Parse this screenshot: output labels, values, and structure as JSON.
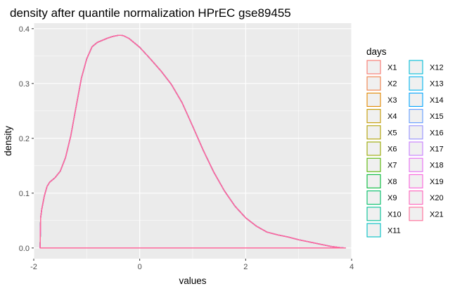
{
  "chart_data": {
    "type": "line",
    "title": "density after quantile normalization HPrEC gse89455",
    "xlabel": "values",
    "ylabel": "density",
    "xlim": [
      -2.0,
      4.0
    ],
    "ylim": [
      -0.0195,
      0.41
    ],
    "x_ticks": [
      -2,
      0,
      2,
      4
    ],
    "x_tick_labels": [
      "-2",
      "0",
      "2",
      "4"
    ],
    "y_ticks": [
      0.0,
      0.1,
      0.2,
      0.3,
      0.4
    ],
    "y_tick_labels": [
      "0.0",
      "0.1",
      "0.2",
      "0.3",
      "0.4"
    ],
    "grid": true,
    "legend": {
      "title": "days",
      "position": "right",
      "fill": "#f0f0f0"
    },
    "curve_x": [
      -1.88,
      -1.87,
      -1.85,
      -1.8,
      -1.75,
      -1.7,
      -1.6,
      -1.5,
      -1.4,
      -1.3,
      -1.2,
      -1.1,
      -1.0,
      -0.9,
      -0.8,
      -0.7,
      -0.6,
      -0.5,
      -0.4,
      -0.35,
      -0.3,
      -0.2,
      0.0,
      0.2,
      0.4,
      0.6,
      0.8,
      1.0,
      1.2,
      1.4,
      1.6,
      1.8,
      2.0,
      2.2,
      2.4,
      2.6,
      2.8,
      3.0,
      3.2,
      3.4,
      3.6,
      3.8,
      3.88
    ],
    "curve_y": [
      0.0,
      0.055,
      0.07,
      0.095,
      0.112,
      0.12,
      0.128,
      0.14,
      0.165,
      0.205,
      0.258,
      0.31,
      0.345,
      0.367,
      0.375,
      0.379,
      0.383,
      0.386,
      0.388,
      0.388,
      0.387,
      0.382,
      0.366,
      0.345,
      0.323,
      0.298,
      0.265,
      0.222,
      0.178,
      0.138,
      0.104,
      0.076,
      0.055,
      0.04,
      0.029,
      0.024,
      0.02,
      0.015,
      0.011,
      0.007,
      0.003,
      0.0005,
      0.0
    ],
    "series": [
      {
        "name": "X1",
        "color": "#F8766D"
      },
      {
        "name": "X2",
        "color": "#EF7F47"
      },
      {
        "name": "X3",
        "color": "#E38900"
      },
      {
        "name": "X4",
        "color": "#C49A00"
      },
      {
        "name": "X5",
        "color": "#B0A100"
      },
      {
        "name": "X6",
        "color": "#99A800"
      },
      {
        "name": "X7",
        "color": "#53B400"
      },
      {
        "name": "X8",
        "color": "#00BA38"
      },
      {
        "name": "X9",
        "color": "#00BE67"
      },
      {
        "name": "X10",
        "color": "#00C094"
      },
      {
        "name": "X11",
        "color": "#00BFC4"
      },
      {
        "name": "X12",
        "color": "#00BCD8"
      },
      {
        "name": "X13",
        "color": "#00B4EF"
      },
      {
        "name": "X14",
        "color": "#00A5FF"
      },
      {
        "name": "X15",
        "color": "#619CFF"
      },
      {
        "name": "X16",
        "color": "#9590FF"
      },
      {
        "name": "X17",
        "color": "#C77CFF"
      },
      {
        "name": "X18",
        "color": "#E76BF3"
      },
      {
        "name": "X19",
        "color": "#FA62DB"
      },
      {
        "name": "X20",
        "color": "#FF62BC"
      },
      {
        "name": "X21",
        "color": "#FF6A98"
      }
    ]
  }
}
